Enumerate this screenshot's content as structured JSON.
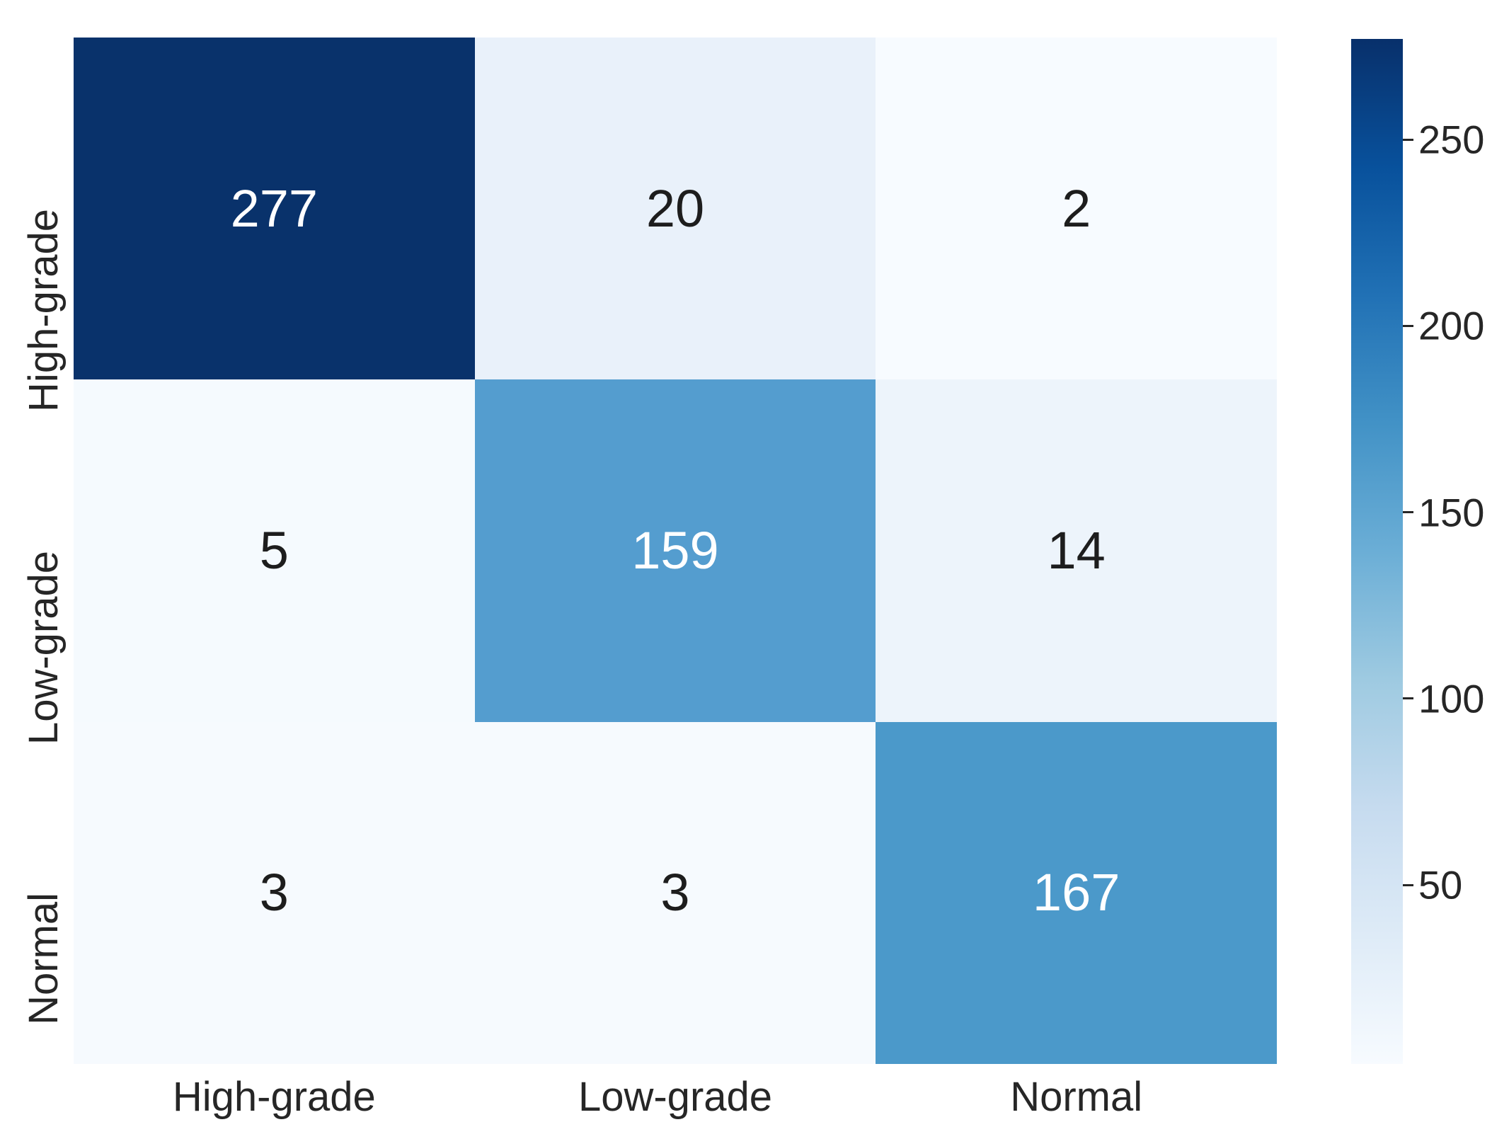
{
  "chart_data": {
    "type": "heatmap",
    "title": "",
    "xlabel": "",
    "ylabel": "",
    "x_categories": [
      "High-grade",
      "Low-grade",
      "Normal"
    ],
    "y_categories": [
      "High-grade",
      "Low-grade",
      "Normal"
    ],
    "matrix": [
      [
        277,
        20,
        2
      ],
      [
        5,
        159,
        14
      ],
      [
        3,
        3,
        167
      ]
    ],
    "vmin": 2,
    "vmax": 277,
    "colormap": "Blues",
    "colormap_stops": [
      "#f7fbff",
      "#deebf7",
      "#c6dbef",
      "#9ecae1",
      "#6baed6",
      "#4292c6",
      "#2171b5",
      "#08519c",
      "#08306b"
    ],
    "cell_colors": [
      [
        "#09326b",
        "#e9f1fa",
        "#f7fbff"
      ],
      [
        "#f5fafe",
        "#549dcf",
        "#edf4fb"
      ],
      [
        "#f6fafe",
        "#f6fafe",
        "#4b99ca"
      ]
    ],
    "annot_colors": [
      [
        "#ffffff",
        "#1d1d1d",
        "#1d1d1d"
      ],
      [
        "#1d1d1d",
        "#ffffff",
        "#1d1d1d"
      ],
      [
        "#1d1d1d",
        "#1d1d1d",
        "#ffffff"
      ]
    ],
    "colorbar_ticks": [
      50,
      100,
      150,
      200,
      250
    ],
    "colorbar_position": "right",
    "grid": false,
    "legend": false,
    "tick_color": "#262626",
    "background_color": "#ffffff"
  }
}
